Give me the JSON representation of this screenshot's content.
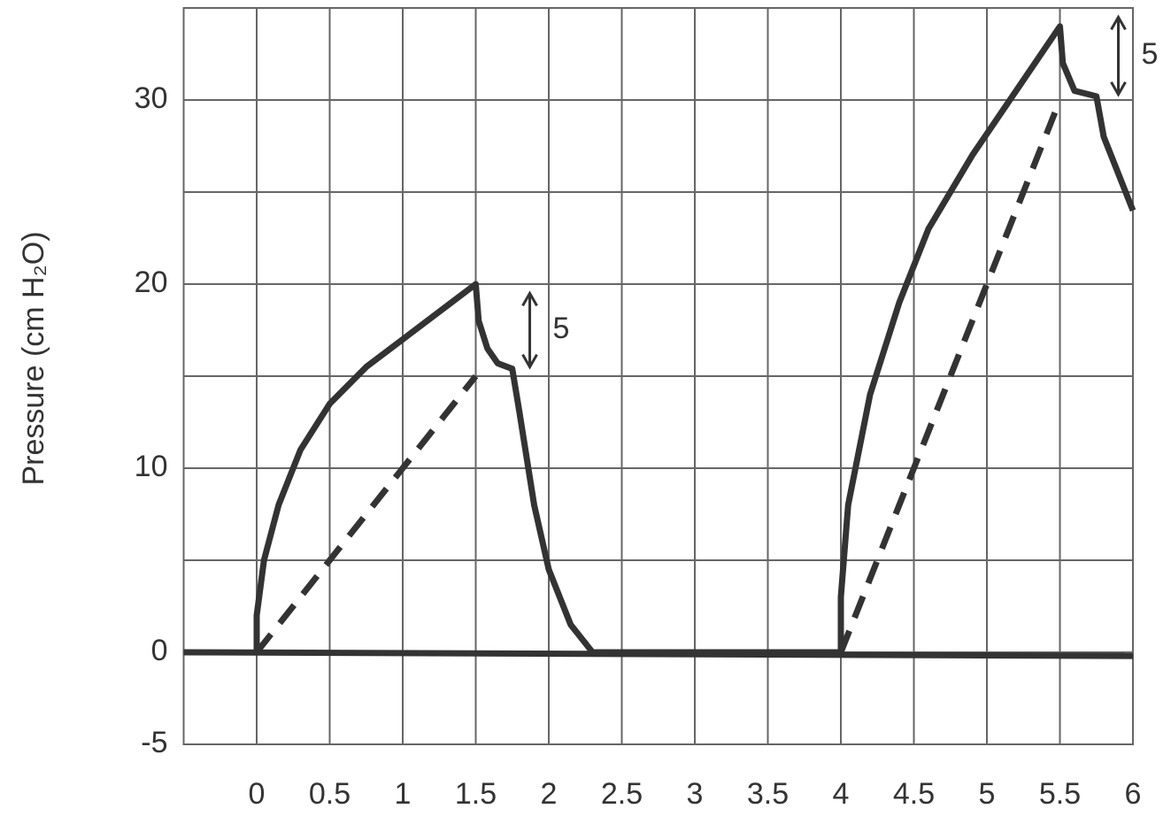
{
  "chart_data": {
    "type": "line",
    "ylabel": "Pressure (cm H₂O)",
    "xlim": [
      -0.5,
      6
    ],
    "ylim": [
      -5,
      35
    ],
    "xticks": [
      0,
      0.5,
      1,
      1.5,
      2,
      2.5,
      3,
      3.5,
      4,
      4.5,
      5,
      5.5,
      6
    ],
    "yticks": [
      -5,
      0,
      10,
      20,
      30
    ],
    "minor_yticks": [
      5,
      15,
      25
    ],
    "grid": true,
    "series": [
      {
        "color": "#333333",
        "style": "solid",
        "x": [
          0,
          0,
          0.05,
          0.15,
          0.3,
          0.5,
          0.75,
          1,
          1.25,
          1.5,
          1.52,
          1.58,
          1.65,
          1.75,
          1.8,
          1.9,
          2,
          2.15,
          2.3,
          4,
          4,
          4.05,
          4.2,
          4.4,
          4.6,
          4.9,
          5.2,
          5.5,
          5.52,
          5.6,
          5.7,
          5.75,
          5.8,
          5.9,
          6
        ],
        "values": [
          0,
          2,
          5,
          8,
          11,
          13.5,
          15.5,
          17,
          18.5,
          20,
          18,
          16.5,
          15.7,
          15.4,
          13,
          8,
          4.5,
          1.5,
          0,
          0,
          3,
          8,
          14,
          19,
          23,
          27,
          30.5,
          34,
          32,
          30.5,
          30.3,
          30.2,
          28,
          26,
          24
        ]
      },
      {
        "color": "#333333",
        "style": "dashed",
        "x": [
          0,
          1.5,
          1.5,
          4,
          5.5
        ],
        "values": [
          0,
          15,
          null,
          0,
          30
        ]
      },
      {
        "color": "#333333",
        "style": "solid",
        "x": [
          -0.5,
          6
        ],
        "values": [
          0,
          -0.2
        ]
      }
    ],
    "annotations": [
      {
        "text": "5",
        "x": 1.87,
        "y1": 15.5,
        "y2": 19.5
      },
      {
        "text": "5",
        "x": 5.9,
        "y1": 30.3,
        "y2": 34.5
      }
    ]
  }
}
